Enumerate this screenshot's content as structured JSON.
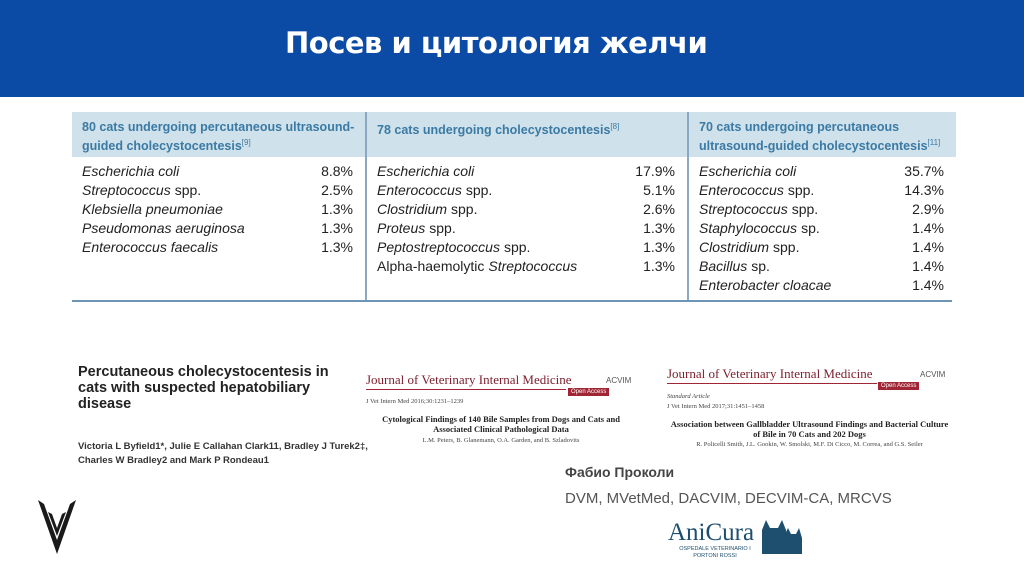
{
  "header": {
    "title": "Посев и цитология желчи"
  },
  "table": {
    "columns": [
      {
        "heading": "80 cats undergoing percutaneous ultrasound-guided cholecystocentesis",
        "ref": "[9]",
        "rows": [
          {
            "organism": "Escherichia coli",
            "value": "8.8%"
          },
          {
            "organism": "Streptococcus",
            "suffix": "spp.",
            "value": "2.5%"
          },
          {
            "organism": "Klebsiella pneumoniae",
            "value": "1.3%"
          },
          {
            "organism": "Pseudomonas aeruginosa",
            "value": "1.3%"
          },
          {
            "organism": "Enterococcus faecalis",
            "value": "1.3%"
          }
        ]
      },
      {
        "heading": "78 cats undergoing cholecystocentesis",
        "ref": "[8]",
        "rows": [
          {
            "organism": "Escherichia coli",
            "value": "17.9%"
          },
          {
            "organism": "Enterococcus",
            "suffix": "spp.",
            "value": "5.1%"
          },
          {
            "organism": "Clostridium",
            "suffix": "spp.",
            "value": "2.6%"
          },
          {
            "organism": "Proteus",
            "suffix": "spp.",
            "value": "1.3%"
          },
          {
            "organism": "Peptostreptococcus",
            "suffix": "spp.",
            "value": "1.3%"
          },
          {
            "prefix": "Alpha-haemolytic",
            "organism": "Streptococcus",
            "value": "1.3%"
          }
        ]
      },
      {
        "heading": "70 cats undergoing percutaneous ultrasound-guided cholecystocentesis",
        "ref": "[11]",
        "rows": [
          {
            "organism": "Escherichia coli",
            "value": "35.7%"
          },
          {
            "organism": "Enterococcus",
            "suffix": "spp.",
            "value": "14.3%"
          },
          {
            "organism": "Streptococcus",
            "suffix": "spp.",
            "value": "2.9%"
          },
          {
            "organism": "Staphylococcus",
            "suffix": "sp.",
            "value": "1.4%"
          },
          {
            "organism": "Clostridium",
            "suffix": "spp.",
            "value": "1.4%"
          },
          {
            "organism": "Bacillus",
            "suffix": "sp.",
            "value": "1.4%"
          },
          {
            "organism": "Enterobacter cloacae",
            "value": "1.4%"
          }
        ]
      }
    ]
  },
  "papers": [
    {
      "title": "Percutaneous cholecystocentesis in cats with suspected hepatobiliary disease",
      "authors": "Victoria L Byfield1*, Julie E Callahan Clark11, Bradley J Turek2‡, Charles W Bradley2 and Mark P Rondeau1"
    },
    {
      "journal": "Journal of Veterinary Internal Medicine",
      "society": "ACVIM",
      "access": "Open Access",
      "citation": "J Vet Intern Med 2016;30:1231–1239",
      "title": "Cytological Findings of 140 Bile Samples from Dogs and Cats and Associated Clinical Pathological Data",
      "authors": "L.M. Peters, B. Glanemann, O.A. Garden, and B. Szladovits"
    },
    {
      "journal": "Journal of Veterinary Internal Medicine",
      "society": "ACVIM",
      "access": "Open Access",
      "type": "Standard Article",
      "citation": "J Vet Intern Med 2017;31:1451–1458",
      "title": "Association between Gallbladder Ultrasound Findings and Bacterial Culture of Bile in 70 Cats and 202 Dogs",
      "authors": "R. Policelli Smith, J.L. Gookin, W. Smolski, M.F. Di Cicco, M. Correa, and G.S. Seiler"
    }
  ],
  "speaker": {
    "name": "Фабио Проколи",
    "credentials": "DVM, MVetMed, DACVIM, DECVIM-CA, MRCVS"
  },
  "logo": {
    "name": "AniCura",
    "subtitle": "OSPEDALE VETERINARIO I PORTONI ROSSI"
  }
}
